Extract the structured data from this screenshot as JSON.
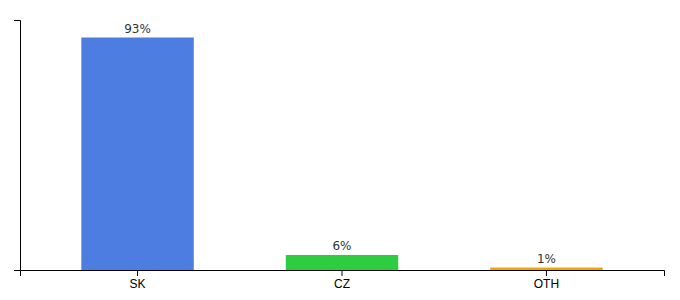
{
  "chart_data": {
    "type": "bar",
    "categories": [
      "SK",
      "CZ",
      "OTH"
    ],
    "values": [
      93,
      6,
      1
    ],
    "value_labels": [
      "93%",
      "6%",
      "1%"
    ],
    "colors": [
      "#4d7de0",
      "#2ecc40",
      "#f0a500"
    ],
    "ylim": [
      0,
      100
    ],
    "data_labels": true,
    "tick_labels": "x"
  }
}
